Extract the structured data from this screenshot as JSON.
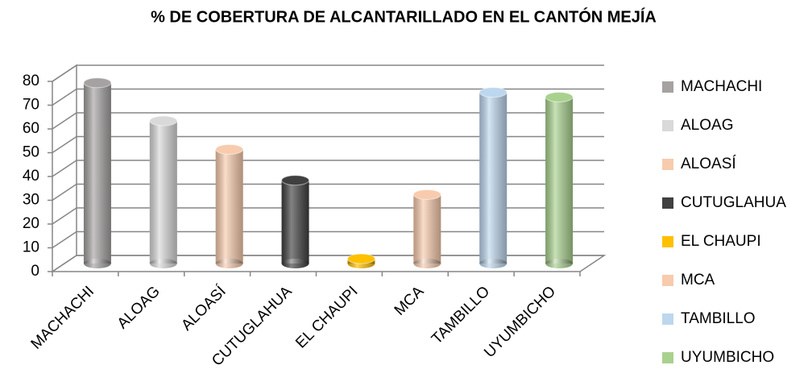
{
  "chart_data": {
    "type": "bar3d",
    "title": "% DE COBERTURA DE ALCANTARILLADO EN EL CANTÓN MEJÍA",
    "categories": [
      "MACHACHI",
      "ALOAG",
      "ALOASÍ",
      "CUTUGLAHUA",
      "EL CHAUPI",
      "MCA",
      "TAMBILLO",
      "UYUMBICHO"
    ],
    "values": [
      76,
      60,
      48,
      35,
      2,
      29,
      72,
      70
    ],
    "colors": [
      "#a6a2a2",
      "#d9d9d9",
      "#f8cbad",
      "#404040",
      "#ffc000",
      "#f8cbad",
      "#bdd7ee",
      "#a9d18e"
    ],
    "ylim": [
      0,
      80
    ],
    "yticks": [
      0,
      10,
      20,
      30,
      40,
      50,
      60,
      70,
      80
    ],
    "grid": true,
    "legend": "right"
  }
}
